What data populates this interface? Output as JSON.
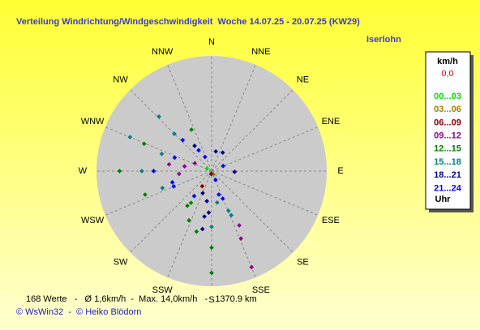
{
  "chart_data": {
    "type": "polar_scatter",
    "title": "Verteilung Windrichtung/Windgeschwindigkeit  Woche 14.07.25 - 20.07.25 (KW29)",
    "location": "Iserlohn",
    "directions": [
      "N",
      "NNE",
      "NE",
      "ENE",
      "E",
      "ESE",
      "SE",
      "SSE",
      "S",
      "SSW",
      "SW",
      "WSW",
      "W",
      "WNW",
      "NW",
      "NNW"
    ],
    "rlim": [
      0,
      15.5
    ],
    "legend_title": "km/h",
    "calm": "0,0",
    "legend_footer": "Uhr",
    "summary": "168 Werte   -   Ø 1,6km/h  -  Max. 14,0km/h   -   1370.9 km",
    "credits": "© WsWin32  -  © Heiko Blödorn",
    "series": [
      {
        "name": "00...03",
        "color": "#00e000",
        "theta": [
          297
        ],
        "values": [
          0.7
        ]
      },
      {
        "name": "03...06",
        "color": "#a08000",
        "theta": [
          150
        ],
        "values": [
          0.5
        ]
      },
      {
        "name": "06...09",
        "color": "#800000",
        "theta": [
          190,
          212
        ],
        "values": [
          0.4,
          2.4
        ]
      },
      {
        "name": "09...12",
        "color": "#900090",
        "theta": [
          157.4,
          156.5,
          265,
          295,
          280,
          279,
          153
        ],
        "values": [
          14.0,
          9.9,
          4.4,
          2.5,
          3.7,
          5.8,
          8.2
        ]
      },
      {
        "name": "12...15",
        "color": "#008000",
        "theta": [
          292,
          270,
          250.5,
          180,
          180,
          213,
          194,
          204.7,
          215,
          334
        ],
        "values": [
          9.8,
          12.4,
          9.5,
          13.7,
          10.3,
          5.1,
          8.4,
          7.3,
          5.7,
          6.2
        ]
      },
      {
        "name": "15...18",
        "color": "#008080",
        "theta": [
          292.6,
          316,
          315,
          289,
          270,
          251,
          180,
          170,
          156,
          157
        ],
        "values": [
          11.9,
          10.2,
          7.1,
          7.1,
          9.4,
          7.0,
          7.5,
          4.3,
          6.5,
          5.8
        ]
      },
      {
        "name": "18...21",
        "color": "#000080",
        "theta": [
          189,
          189,
          92,
          31,
          12,
          326,
          184,
          189,
          202
        ],
        "values": [
          6.2,
          7.9,
          3.1,
          2.9,
          2.7,
          4.1,
          5.6,
          4.1,
          3.2
        ]
      },
      {
        "name": "21...24",
        "color": "#0000ff",
        "theta": [
          66,
          328,
          335,
          156,
          163,
          158,
          290,
          317,
          270,
          254,
          248,
          215
        ],
        "values": [
          1.7,
          3.3,
          2.1,
          1.3,
          3.3,
          4.0,
          5.3,
          5.7,
          7.8,
          5.5,
          5.5,
          4.1
        ]
      }
    ]
  }
}
